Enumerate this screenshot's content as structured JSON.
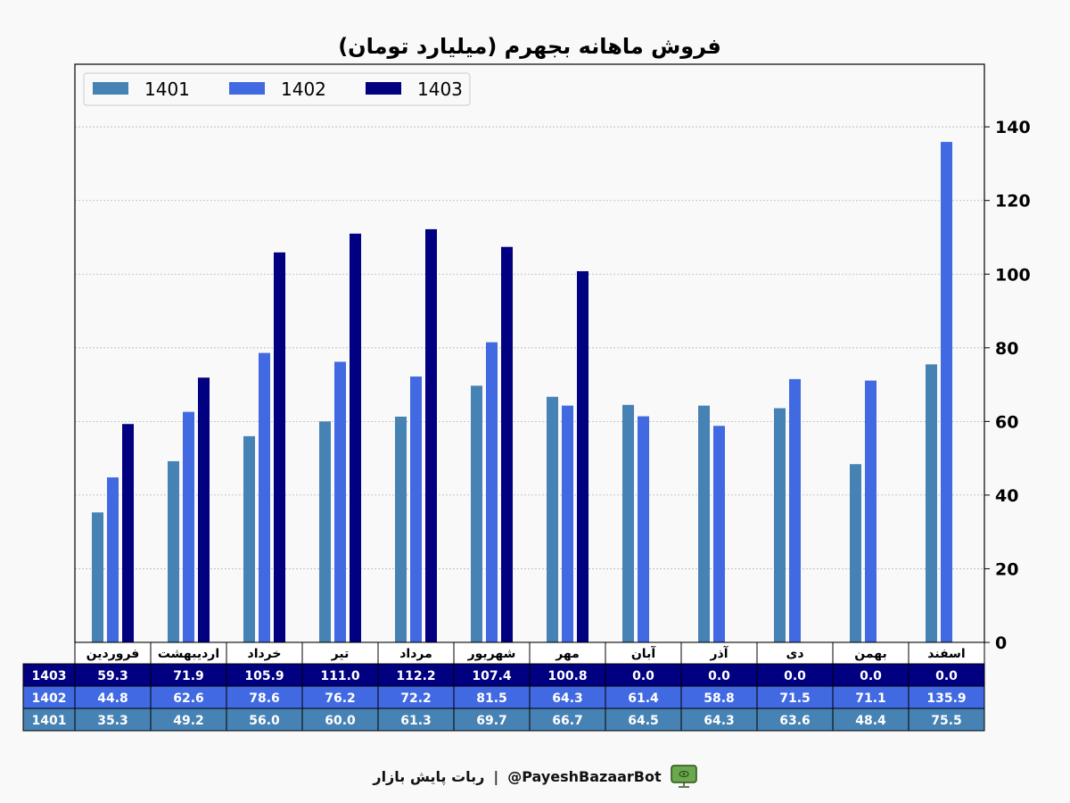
{
  "chart_data": {
    "type": "bar",
    "title": "فروش ماهانه بجهرم (میلیارد تومان)",
    "categories": [
      "فروردین",
      "اردیبهشت",
      "خرداد",
      "تیر",
      "مرداد",
      "شهریور",
      "مهر",
      "آبان",
      "آذر",
      "دی",
      "بهمن",
      "اسفند"
    ],
    "series": [
      {
        "name": "1401",
        "color": "#4682b4",
        "values": [
          35.3,
          49.2,
          56.0,
          60.0,
          61.3,
          69.7,
          66.7,
          64.5,
          64.3,
          63.6,
          48.4,
          75.5
        ]
      },
      {
        "name": "1402",
        "color": "#4169e1",
        "values": [
          44.8,
          62.6,
          78.6,
          76.2,
          72.2,
          81.5,
          64.3,
          61.4,
          58.8,
          71.5,
          71.1,
          135.9
        ]
      },
      {
        "name": "1403",
        "color": "#000080",
        "values": [
          59.3,
          71.9,
          105.9,
          111.0,
          112.2,
          107.4,
          100.8,
          0.0,
          0.0,
          0.0,
          0.0,
          0.0
        ]
      }
    ],
    "ylim": [
      0,
      157
    ],
    "yticks": [
      0,
      20,
      40,
      60,
      80,
      100,
      120,
      140
    ],
    "y_axis_side": "right",
    "grid": true,
    "legend_position": "top-left",
    "table_rows": [
      {
        "label": "1403",
        "values": [
          "59.3",
          "71.9",
          "105.9",
          "111.0",
          "112.2",
          "107.4",
          "100.8",
          "0.0",
          "0.0",
          "0.0",
          "0.0",
          "0.0"
        ]
      },
      {
        "label": "1402",
        "values": [
          "44.8",
          "62.6",
          "78.6",
          "76.2",
          "72.2",
          "81.5",
          "64.3",
          "61.4",
          "58.8",
          "71.5",
          "71.1",
          "135.9"
        ]
      },
      {
        "label": "1401",
        "values": [
          "35.3",
          "49.2",
          "56.0",
          "60.0",
          "61.3",
          "69.7",
          "66.7",
          "64.5",
          "64.3",
          "63.6",
          "48.4",
          "75.5"
        ]
      }
    ]
  },
  "footer": {
    "bot_name": "ربات پایش بازار",
    "separator": "|",
    "handle": "@PayeshBazaarBot",
    "icon": "monitor-icon"
  }
}
